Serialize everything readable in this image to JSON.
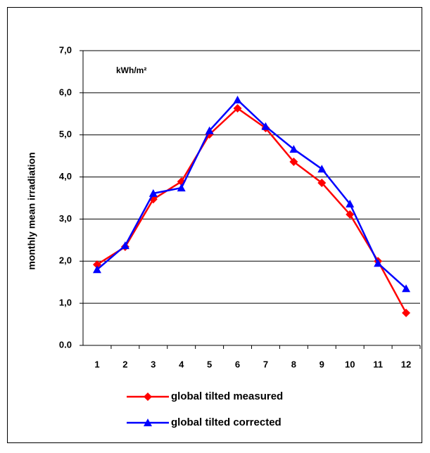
{
  "chart_data": {
    "type": "line",
    "y_label": "monthly mean irradiation",
    "annotation": "kWh/m²",
    "categories": [
      "1",
      "2",
      "3",
      "4",
      "5",
      "6",
      "7",
      "8",
      "9",
      "10",
      "11",
      "12"
    ],
    "series": [
      {
        "name": "global tilted measured",
        "color": "#ff0000",
        "marker": "diamond",
        "values": [
          1.92,
          2.34,
          3.47,
          3.89,
          5.01,
          5.63,
          5.16,
          4.36,
          3.86,
          3.11,
          2.0,
          0.77
        ]
      },
      {
        "name": "global tilted corrected",
        "color": "#0000ff",
        "marker": "triangle",
        "values": [
          1.8,
          2.37,
          3.61,
          3.74,
          5.1,
          5.83,
          5.2,
          4.66,
          4.19,
          3.36,
          1.95,
          1.35
        ]
      }
    ],
    "ylim": [
      0,
      7
    ],
    "yticks": [
      {
        "value": 0,
        "label": "0.0"
      },
      {
        "value": 1,
        "label": "1,0"
      },
      {
        "value": 2,
        "label": "2,0"
      },
      {
        "value": 3,
        "label": "3,0"
      },
      {
        "value": 4,
        "label": "4,0"
      },
      {
        "value": 5,
        "label": "5,0"
      },
      {
        "value": 6,
        "label": "6,0"
      },
      {
        "value": 7,
        "label": "7,0"
      }
    ],
    "grid": true
  }
}
